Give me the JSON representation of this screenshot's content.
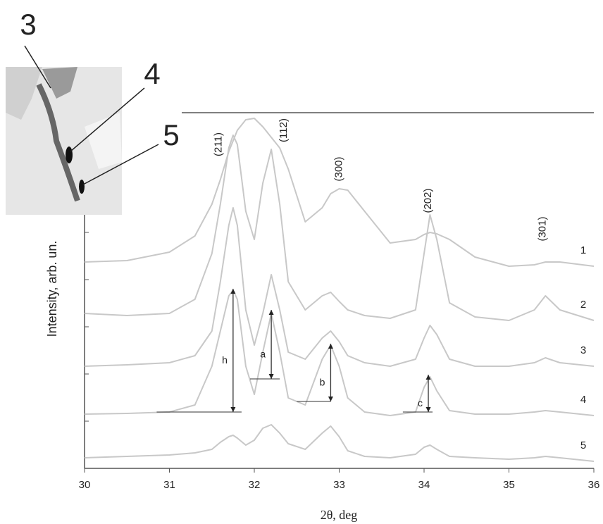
{
  "chart_data": {
    "type": "line",
    "xlabel": "2θ, deg",
    "ylabel": "Intensity, arb. un.",
    "xlim": [
      30,
      36
    ],
    "xticks": [
      30,
      31,
      32,
      33,
      34,
      35,
      36
    ],
    "ylim": [
      0,
      505
    ],
    "yticks": [
      67,
      134,
      201,
      268,
      335
    ],
    "x": [
      30,
      30.5,
      31,
      31.3,
      31.5,
      31.6,
      31.7,
      31.75,
      31.8,
      31.9,
      32.0,
      32.1,
      32.2,
      32.3,
      32.4,
      32.6,
      32.8,
      32.9,
      33.0,
      33.1,
      33.3,
      33.6,
      33.9,
      34.0,
      34.07,
      34.15,
      34.3,
      34.6,
      35.0,
      35.3,
      35.43,
      35.6,
      36
    ],
    "series": [
      {
        "name": "1",
        "color": "#c8c8c8",
        "values": [
          293,
          295,
          307,
          330,
          375,
          410,
          450,
          465,
          480,
          495,
          497,
          485,
          470,
          455,
          425,
          350,
          370,
          390,
          397,
          395,
          365,
          320,
          325,
          332,
          335,
          333,
          325,
          300,
          287,
          289,
          293,
          293,
          287
        ]
      },
      {
        "name": "2",
        "color": "#c8c8c8",
        "values": [
          220,
          217,
          220,
          240,
          305,
          375,
          455,
          473,
          460,
          365,
          325,
          405,
          453,
          375,
          265,
          225,
          245,
          250,
          237,
          225,
          217,
          213,
          225,
          305,
          360,
          325,
          235,
          215,
          210,
          225,
          245,
          225,
          210
        ]
      },
      {
        "name": "3",
        "color": "#c8c8c8",
        "values": [
          145,
          147,
          150,
          160,
          195,
          265,
          345,
          370,
          345,
          225,
          175,
          220,
          275,
          225,
          165,
          155,
          185,
          195,
          180,
          160,
          150,
          145,
          155,
          185,
          203,
          190,
          155,
          145,
          145,
          150,
          157,
          150,
          145
        ]
      },
      {
        "name": "4",
        "color": "#c8c8c8",
        "values": [
          77,
          78,
          80,
          90,
          145,
          195,
          245,
          253,
          240,
          145,
          105,
          165,
          220,
          165,
          100,
          90,
          155,
          175,
          145,
          100,
          80,
          75,
          80,
          115,
          130,
          110,
          82,
          77,
          77,
          80,
          82,
          80,
          75
        ]
      },
      {
        "name": "5",
        "color": "#c8c8c8",
        "values": [
          15,
          17,
          19,
          22,
          27,
          37,
          45,
          47,
          43,
          33,
          40,
          57,
          62,
          50,
          35,
          27,
          50,
          60,
          45,
          25,
          17,
          15,
          20,
          30,
          33,
          27,
          17,
          15,
          13,
          15,
          17,
          15,
          10
        ]
      }
    ],
    "annotations": [
      {
        "text": "(211)",
        "x": 31.58,
        "y": 460
      },
      {
        "text": "(112)",
        "x": 32.35,
        "y": 480
      },
      {
        "text": "(300)",
        "x": 33.0,
        "y": 425
      },
      {
        "text": "(202)",
        "x": 34.05,
        "y": 380
      },
      {
        "text": "(301)",
        "x": 35.4,
        "y": 340
      }
    ],
    "measures": [
      {
        "label": "h",
        "x": 31.75,
        "y": [
          80,
          255
        ],
        "base": [
          30.85,
          31.85
        ]
      },
      {
        "label": "a",
        "x": 32.2,
        "y": [
          127,
          225
        ],
        "base": [
          31.95,
          32.3
        ]
      },
      {
        "label": "b",
        "x": 32.9,
        "y": [
          95,
          177
        ],
        "base": [
          32.5,
          32.9
        ]
      },
      {
        "label": "c",
        "x": 34.05,
        "y": [
          80,
          133
        ],
        "base": [
          33.75,
          34.1
        ]
      }
    ]
  },
  "inset": {
    "labels": [
      "3",
      "4",
      "5"
    ]
  }
}
